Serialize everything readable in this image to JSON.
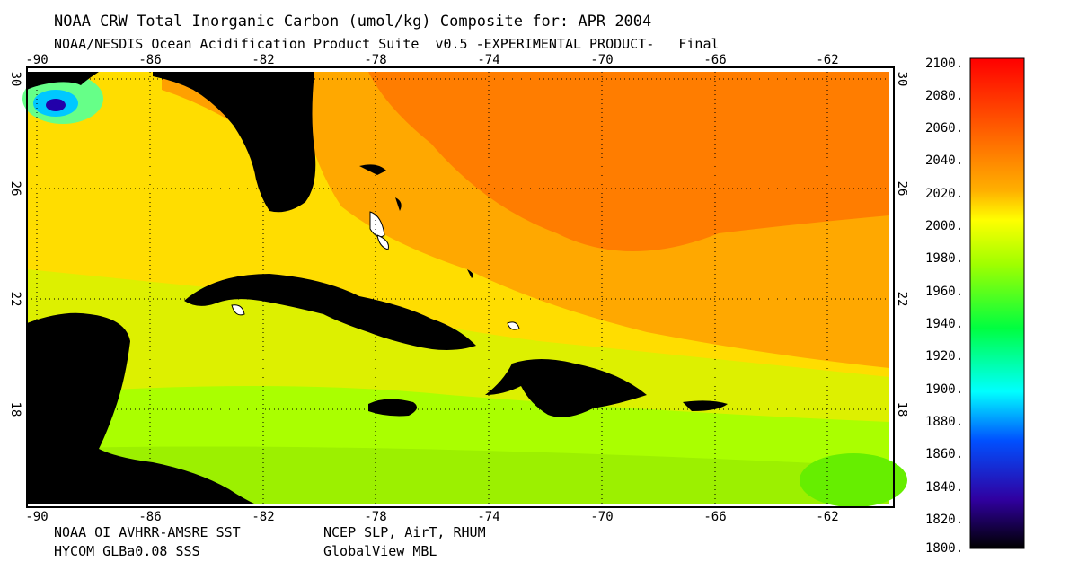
{
  "header": {
    "title": "NOAA CRW Total Inorganic Carbon (umol/kg) Composite for: APR 2004",
    "subtitle": "NOAA/NESDIS Ocean Acidification Product Suite  v0.5 -EXPERIMENTAL PRODUCT-   Final"
  },
  "footer": {
    "source_sst": "NOAA OI AVHRR-AMSRE SST",
    "source_sss": "HYCOM GLBa0.08 SSS",
    "source_met": "NCEP SLP, AirT, RHUM",
    "source_co2": "GlobalView MBL"
  },
  "map": {
    "lon_ticks": [
      "-90",
      "-86",
      "-82",
      "-78",
      "-74",
      "-70",
      "-66",
      "-62"
    ],
    "lat_ticks": [
      "30",
      "26",
      "22",
      "18"
    ],
    "lon_range": [
      -90.5,
      -59
    ],
    "lat_range": [
      14.5,
      30.2
    ],
    "land_color": "#000000",
    "gridline_style": "dotted"
  },
  "colorbar": {
    "labels": [
      "2100.",
      "2080.",
      "2060.",
      "2040.",
      "2020.",
      "2000.",
      "1980.",
      "1960.",
      "1940.",
      "1920.",
      "1900.",
      "1880.",
      "1860.",
      "1840.",
      "1820.",
      "1800."
    ],
    "min": 1800,
    "max": 2100,
    "units": "umol/kg"
  }
}
